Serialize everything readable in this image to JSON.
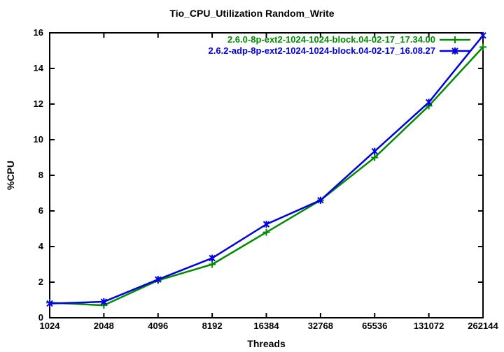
{
  "title": "Tio_CPU_Utilization Random_Write",
  "colors": {
    "background": "#ffffff",
    "border": "#000000",
    "text": "#000000",
    "series_green": "#008c00",
    "series_blue": "#0000e0"
  },
  "chart_data": {
    "type": "line",
    "title": "Tio_CPU_Utilization Random_Write",
    "xlabel": "Threads",
    "ylabel": "%CPU",
    "x_scale": "log2",
    "categories": [
      "1024",
      "2048",
      "4096",
      "8192",
      "16384",
      "32768",
      "65536",
      "131072",
      "262144"
    ],
    "ylim": [
      0,
      16
    ],
    "yticks": [
      0,
      2,
      4,
      6,
      8,
      10,
      12,
      14,
      16
    ],
    "grid": false,
    "legend_position": "top-right-inside",
    "series": [
      {
        "name": "2.6.0-8p-ext2-1024-1024-block.04-02-17_17.34.00",
        "color": "#008c00",
        "marker": "plus",
        "values": [
          0.85,
          0.7,
          2.1,
          3.0,
          4.8,
          6.6,
          9.0,
          11.9,
          15.2
        ]
      },
      {
        "name": "2.6.2-adp-8p-ext2-1024-1024-block.04-02-17_16.08.27",
        "color": "#0000e0",
        "marker": "star",
        "values": [
          0.8,
          0.9,
          2.15,
          3.35,
          5.25,
          6.6,
          9.35,
          12.1,
          15.85
        ]
      }
    ]
  }
}
